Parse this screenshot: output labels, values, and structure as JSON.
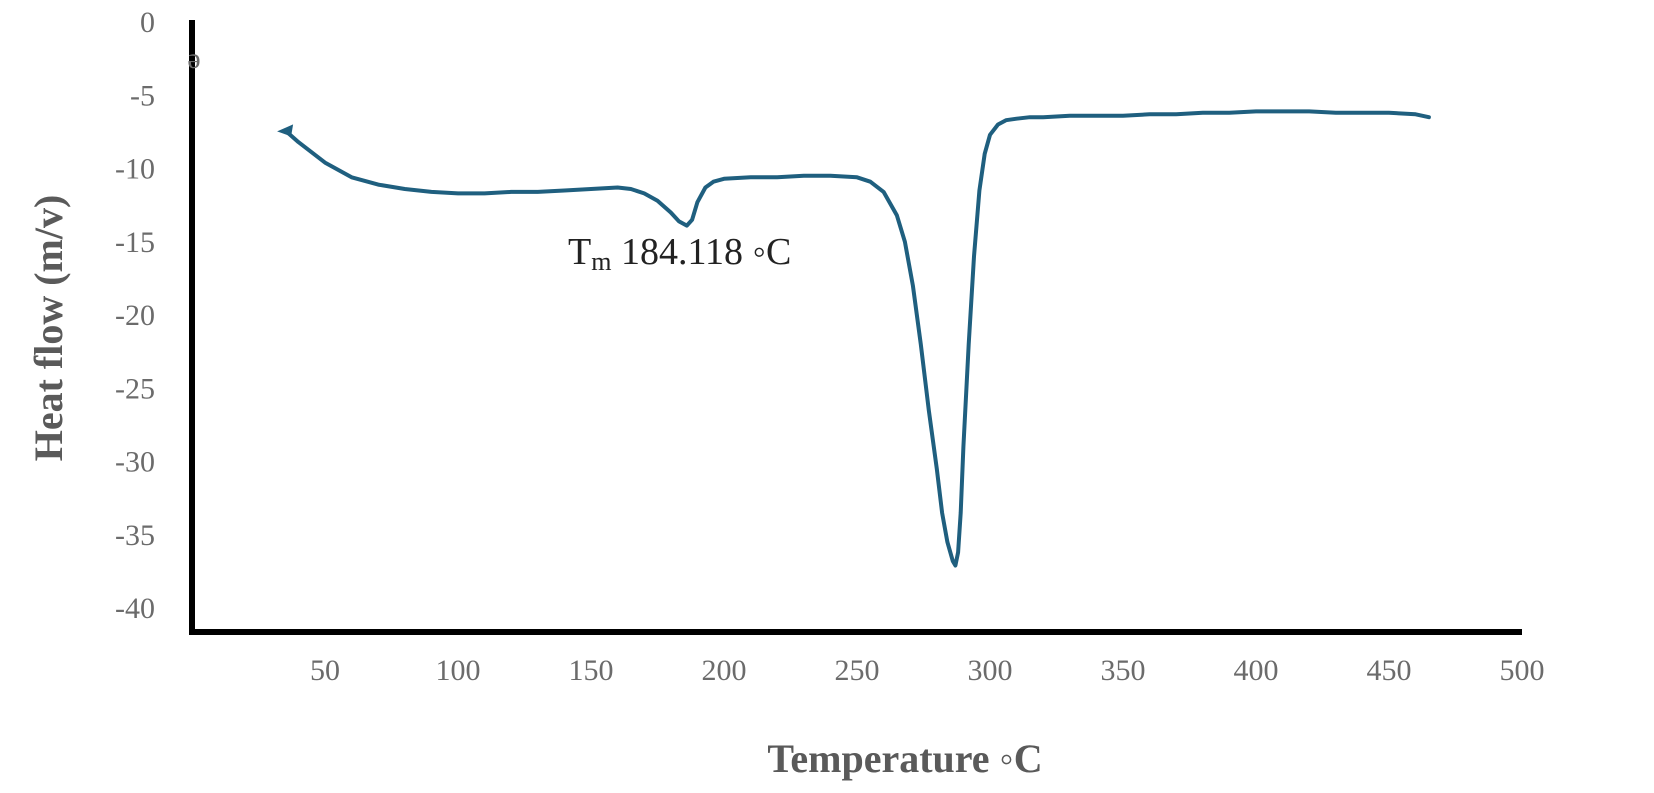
{
  "chart_data": {
    "type": "line",
    "xlabel": "Temperature ◦C",
    "ylabel": "Heat flow (m/v)",
    "xlim": [
      0,
      500
    ],
    "ylim": [
      -40,
      0
    ],
    "x_ticks": [
      "50",
      "100",
      "150",
      "200",
      "250",
      "300",
      "350",
      "400",
      "450",
      "500"
    ],
    "y_ticks": [
      "0",
      "-5",
      "-10",
      "-15",
      "-20",
      "-25",
      "-30",
      "-35",
      "-40"
    ],
    "y_tick_values": [
      0,
      -5,
      -10,
      -15,
      -20,
      -25,
      -30,
      -35,
      -40
    ],
    "x_tick_values": [
      50,
      100,
      150,
      200,
      250,
      300,
      350,
      400,
      450,
      500
    ],
    "grid": false,
    "series": [
      {
        "color": "#1f5f7f",
        "x": [
          35,
          40,
          50,
          60,
          70,
          80,
          90,
          100,
          110,
          120,
          130,
          140,
          150,
          160,
          165,
          170,
          175,
          180,
          183,
          186,
          188,
          190,
          193,
          196,
          200,
          210,
          220,
          230,
          240,
          250,
          255,
          260,
          265,
          268,
          271,
          274,
          277,
          280,
          282,
          284,
          286,
          287,
          288,
          289,
          290,
          292,
          294,
          296,
          298,
          300,
          303,
          306,
          310,
          315,
          320,
          330,
          340,
          350,
          360,
          370,
          380,
          390,
          400,
          410,
          420,
          430,
          440,
          450,
          460,
          465
        ],
        "y": [
          -7.4,
          -8.2,
          -9.6,
          -10.6,
          -11.1,
          -11.4,
          -11.6,
          -11.7,
          -11.7,
          -11.6,
          -11.6,
          -11.5,
          -11.4,
          -11.3,
          -11.4,
          -11.7,
          -12.2,
          -13.0,
          -13.6,
          -13.9,
          -13.5,
          -12.3,
          -11.3,
          -10.9,
          -10.7,
          -10.6,
          -10.6,
          -10.5,
          -10.5,
          -10.6,
          -10.9,
          -11.6,
          -13.2,
          -15.0,
          -18.0,
          -22.0,
          -26.5,
          -30.5,
          -33.5,
          -35.5,
          -36.8,
          -37.1,
          -36.2,
          -33.5,
          -29.0,
          -22.0,
          -16.0,
          -11.5,
          -9.0,
          -7.7,
          -7.0,
          -6.7,
          -6.6,
          -6.5,
          -6.5,
          -6.4,
          -6.4,
          -6.4,
          -6.3,
          -6.3,
          -6.2,
          -6.2,
          -6.1,
          -6.1,
          -6.1,
          -6.2,
          -6.2,
          -6.2,
          -6.3,
          -6.5
        ]
      }
    ],
    "annotations": [
      {
        "prefix": "T",
        "subscript": "m",
        "text": "184.118 ◦C",
        "x": 184.118,
        "y": -15.7
      }
    ],
    "stray_marks": [
      {
        "text": "ə",
        "x": 2,
        "y": -2.6
      }
    ]
  }
}
